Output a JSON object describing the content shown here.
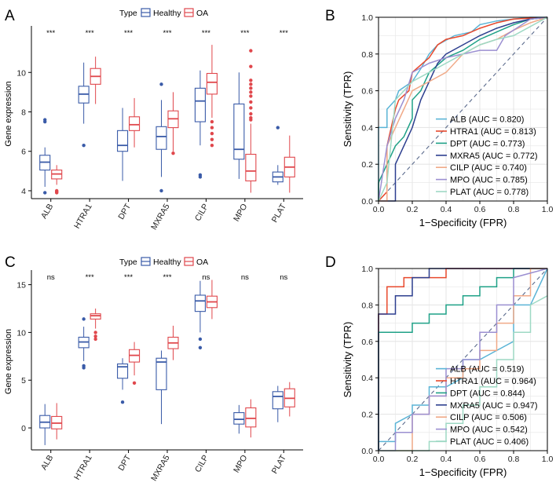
{
  "figure": {
    "title": ""
  },
  "chart_data": [
    {
      "panel": "A",
      "type": "box",
      "legend_title": "Type",
      "legend": [
        "Healthy",
        "OA"
      ],
      "ylabel": "Gene expression",
      "ylim": [
        3.6,
        12.2
      ],
      "yticks": [
        "4",
        "6",
        "8",
        "10"
      ],
      "categories": [
        "ALB",
        "HTRA1",
        "DPT",
        "MXRA5",
        "CILP",
        "MPO",
        "PLAT"
      ],
      "significance": [
        "***",
        "***",
        "***",
        "***",
        "***",
        "***",
        "***"
      ],
      "series": [
        {
          "name": "Healthy",
          "boxes": [
            {
              "min": 4.2,
              "q1": 5.05,
              "median": 5.45,
              "q3": 5.8,
              "max": 6.2,
              "outliers": [
                7.6,
                7.5,
                3.9
              ]
            },
            {
              "min": 7.4,
              "q1": 8.45,
              "median": 8.9,
              "q3": 9.3,
              "max": 10.5,
              "outliers": [
                6.3
              ]
            },
            {
              "min": 4.5,
              "q1": 6.0,
              "median": 6.3,
              "q3": 7.05,
              "max": 8.2,
              "outliers": []
            },
            {
              "min": 4.7,
              "q1": 6.1,
              "median": 6.75,
              "q3": 7.25,
              "max": 8.6,
              "outliers": [
                9.4,
                4.0
              ]
            },
            {
              "min": 6.3,
              "q1": 7.5,
              "median": 8.55,
              "q3": 9.2,
              "max": 10.1,
              "outliers": [
                4.8,
                4.7
              ]
            },
            {
              "min": 4.6,
              "q1": 5.6,
              "median": 6.1,
              "q3": 8.4,
              "max": 10.0,
              "outliers": []
            },
            {
              "min": 4.3,
              "q1": 4.45,
              "median": 4.7,
              "q3": 4.95,
              "max": 5.3,
              "outliers": [
                7.2
              ]
            }
          ]
        },
        {
          "name": "OA",
          "boxes": [
            {
              "min": 4.3,
              "q1": 4.6,
              "median": 4.85,
              "q3": 5.05,
              "max": 5.3,
              "outliers": [
                4.0,
                3.95,
                3.9
              ]
            },
            {
              "min": 8.4,
              "q1": 9.4,
              "median": 9.8,
              "q3": 10.2,
              "max": 10.8,
              "outliers": []
            },
            {
              "min": 6.2,
              "q1": 7.05,
              "median": 7.35,
              "q3": 7.75,
              "max": 8.7,
              "outliers": []
            },
            {
              "min": 6.0,
              "q1": 7.2,
              "median": 7.65,
              "q3": 8.05,
              "max": 9.0,
              "outliers": [
                5.9
              ]
            },
            {
              "min": 7.7,
              "q1": 8.9,
              "median": 9.5,
              "q3": 9.95,
              "max": 11.4,
              "outliers": [
                7.5,
                7.2,
                6.9,
                6.6,
                6.3
              ]
            },
            {
              "min": 3.9,
              "q1": 4.5,
              "median": 5.0,
              "q3": 5.85,
              "max": 7.4,
              "outliers": [
                11.1,
                10.3,
                9.6,
                9.4,
                9.2,
                9.0,
                8.8,
                8.5,
                8.2,
                7.9,
                7.7,
                7.6
              ]
            },
            {
              "min": 3.9,
              "q1": 4.7,
              "median": 5.2,
              "q3": 5.7,
              "max": 6.8,
              "outliers": []
            }
          ]
        }
      ]
    },
    {
      "panel": "B",
      "type": "roc",
      "xlabel": "1−Specificity (FPR)",
      "ylabel": "Sensitivity (TPR)",
      "xlim": [
        0,
        1
      ],
      "ylim": [
        0,
        1
      ],
      "xticks": [
        "0.0",
        "0.2",
        "0.4",
        "0.6",
        "0.8",
        "1.0"
      ],
      "yticks": [
        "0.0",
        "0.2",
        "0.4",
        "0.6",
        "0.8",
        "1.0"
      ],
      "series": [
        {
          "name": "ALB",
          "label": "ALB (AUC = 0.820)",
          "color": "#5AB4D6",
          "fpr": [
            0,
            0,
            0.05,
            0.05,
            0.1,
            0.12,
            0.2,
            0.25,
            0.3,
            0.35,
            0.45,
            0.55,
            0.6,
            0.7,
            0.8,
            0.9,
            1
          ],
          "tpr": [
            0,
            0.4,
            0.4,
            0.5,
            0.55,
            0.6,
            0.65,
            0.72,
            0.8,
            0.85,
            0.9,
            0.92,
            0.96,
            0.98,
            0.99,
            1,
            1
          ]
        },
        {
          "name": "HTRA1",
          "label": "HTRA1 (AUC = 0.813)",
          "color": "#E8492D",
          "fpr": [
            0,
            0.05,
            0.05,
            0.1,
            0.12,
            0.18,
            0.2,
            0.3,
            0.35,
            0.4,
            0.5,
            0.6,
            0.7,
            0.8,
            1
          ],
          "tpr": [
            0,
            0.05,
            0.3,
            0.5,
            0.55,
            0.6,
            0.7,
            0.78,
            0.85,
            0.88,
            0.9,
            0.94,
            0.97,
            0.99,
            1
          ]
        },
        {
          "name": "DPT",
          "label": "DPT (AUC = 0.773)",
          "color": "#1FA187",
          "fpr": [
            0,
            0,
            0.05,
            0.1,
            0.15,
            0.2,
            0.2,
            0.25,
            0.3,
            0.4,
            0.5,
            0.6,
            0.7,
            0.8,
            0.9,
            1
          ],
          "tpr": [
            0,
            0.1,
            0.2,
            0.3,
            0.35,
            0.45,
            0.55,
            0.6,
            0.7,
            0.78,
            0.82,
            0.88,
            0.92,
            0.96,
            0.99,
            1
          ]
        },
        {
          "name": "MXRA5",
          "label": "MXRA5 (AUC = 0.772)",
          "color": "#2D3F8F",
          "fpr": [
            0,
            0.1,
            0.1,
            0.15,
            0.2,
            0.25,
            0.3,
            0.35,
            0.4,
            0.5,
            0.6,
            0.7,
            0.8,
            0.9,
            1
          ],
          "tpr": [
            0,
            0,
            0.2,
            0.3,
            0.4,
            0.55,
            0.65,
            0.75,
            0.8,
            0.85,
            0.9,
            0.94,
            0.97,
            0.99,
            1
          ]
        },
        {
          "name": "CILP",
          "label": "CILP (AUC = 0.740)",
          "color": "#F0A987",
          "fpr": [
            0,
            0.05,
            0.05,
            0.1,
            0.15,
            0.2,
            0.3,
            0.4,
            0.5,
            0.6,
            0.7,
            0.8,
            0.9,
            1
          ],
          "tpr": [
            0,
            0,
            0.3,
            0.4,
            0.5,
            0.6,
            0.65,
            0.7,
            0.8,
            0.85,
            0.88,
            0.93,
            0.97,
            1
          ]
        },
        {
          "name": "MPO",
          "label": "MPO (AUC = 0.785)",
          "color": "#9B8FD1",
          "fpr": [
            0,
            0.05,
            0.1,
            0.15,
            0.2,
            0.3,
            0.4,
            0.5,
            0.6,
            0.7,
            0.75,
            0.8,
            0.85,
            0.9,
            1
          ],
          "tpr": [
            0,
            0.3,
            0.45,
            0.55,
            0.7,
            0.75,
            0.78,
            0.8,
            0.82,
            0.82,
            0.9,
            0.93,
            0.96,
            0.99,
            1
          ]
        },
        {
          "name": "PLAT",
          "label": "PLAT (AUC = 0.778)",
          "color": "#9ED9C4",
          "fpr": [
            0,
            0.05,
            0.1,
            0.15,
            0.2,
            0.3,
            0.4,
            0.5,
            0.6,
            0.7,
            0.8,
            0.9,
            1
          ],
          "tpr": [
            0,
            0.1,
            0.55,
            0.6,
            0.65,
            0.7,
            0.75,
            0.8,
            0.85,
            0.88,
            0.9,
            0.95,
            1
          ]
        }
      ]
    },
    {
      "panel": "C",
      "type": "box",
      "legend_title": "Type",
      "legend": [
        "Healthy",
        "OA"
      ],
      "ylabel": "Gene expression",
      "ylim": [
        -2.3,
        16.2
      ],
      "yticks": [
        "0",
        "5",
        "10",
        "15"
      ],
      "categories": [
        "ALB",
        "HTRA1",
        "DPT",
        "MXRA5",
        "CILP",
        "MPO",
        "PLAT"
      ],
      "significance": [
        "ns",
        "***",
        "***",
        "***",
        "ns",
        "ns",
        "ns"
      ],
      "series": [
        {
          "name": "Healthy",
          "boxes": [
            {
              "min": -1.8,
              "q1": 0.0,
              "median": 0.6,
              "q3": 1.3,
              "max": 2.5,
              "outliers": []
            },
            {
              "min": 7.0,
              "q1": 8.4,
              "median": 9.0,
              "q3": 9.5,
              "max": 10.6,
              "outliers": [
                11.4,
                6.5,
                6.3
              ]
            },
            {
              "min": 4.0,
              "q1": 5.2,
              "median": 6.4,
              "q3": 6.7,
              "max": 7.3,
              "outliers": [
                2.7
              ]
            },
            {
              "min": 0.4,
              "q1": 4.0,
              "median": 6.9,
              "q3": 7.3,
              "max": 8.1,
              "outliers": []
            },
            {
              "min": 10.0,
              "q1": 12.2,
              "median": 13.3,
              "q3": 13.9,
              "max": 15.4,
              "outliers": [
                9.3,
                8.4
              ]
            },
            {
              "min": -0.6,
              "q1": 0.4,
              "median": 0.9,
              "q3": 1.6,
              "max": 2.4,
              "outliers": []
            },
            {
              "min": 0.6,
              "q1": 2.0,
              "median": 3.3,
              "q3": 3.8,
              "max": 4.4,
              "outliers": []
            }
          ]
        },
        {
          "name": "OA",
          "boxes": [
            {
              "min": -1.2,
              "q1": -0.1,
              "median": 0.5,
              "q3": 1.2,
              "max": 2.6,
              "outliers": []
            },
            {
              "min": 10.4,
              "q1": 11.4,
              "median": 11.75,
              "q3": 11.95,
              "max": 12.5,
              "outliers": [
                10.0,
                9.6,
                9.3
              ]
            },
            {
              "min": 5.5,
              "q1": 6.9,
              "median": 7.6,
              "q3": 8.2,
              "max": 9.0,
              "outliers": [
                4.7
              ]
            },
            {
              "min": 7.1,
              "q1": 8.3,
              "median": 8.9,
              "q3": 9.5,
              "max": 10.7,
              "outliers": []
            },
            {
              "min": 11.4,
              "q1": 12.6,
              "median": 13.2,
              "q3": 13.8,
              "max": 15.5,
              "outliers": []
            },
            {
              "min": -1.0,
              "q1": 0.1,
              "median": 1.0,
              "q3": 2.1,
              "max": 3.0,
              "outliers": []
            },
            {
              "min": 1.2,
              "q1": 2.2,
              "median": 3.1,
              "q3": 4.1,
              "max": 4.8,
              "outliers": []
            }
          ]
        }
      ]
    },
    {
      "panel": "D",
      "type": "roc",
      "xlabel": "1−Specificity (FPR)",
      "ylabel": "Sensitivity (TPR)",
      "xlim": [
        0,
        1
      ],
      "ylim": [
        0,
        1
      ],
      "xticks": [
        "0.0",
        "0.2",
        "0.4",
        "0.6",
        "0.8",
        "1.0"
      ],
      "yticks": [
        "0.0",
        "0.2",
        "0.4",
        "0.6",
        "0.8",
        "1.0"
      ],
      "series": [
        {
          "name": "ALB",
          "label": "ALB (AUC = 0.519)",
          "color": "#5AB4D6",
          "fpr": [
            0,
            0,
            0.1,
            0.1,
            0.2,
            0.2,
            0.3,
            0.3,
            0.4,
            0.5,
            0.5,
            0.6,
            0.7,
            0.8,
            0.8,
            0.9,
            1
          ],
          "tpr": [
            0,
            0.05,
            0.05,
            0.15,
            0.2,
            0.25,
            0.25,
            0.35,
            0.35,
            0.4,
            0.5,
            0.5,
            0.55,
            0.6,
            0.8,
            0.8,
            1
          ]
        },
        {
          "name": "HTRA1",
          "label": "HTRA1 (AUC = 0.964)",
          "color": "#E8492D",
          "fpr": [
            0,
            0,
            0.05,
            0.05,
            0.15,
            0.15,
            0.4,
            0.4,
            1
          ],
          "tpr": [
            0,
            0.75,
            0.75,
            0.9,
            0.9,
            0.95,
            0.95,
            1,
            1
          ]
        },
        {
          "name": "DPT",
          "label": "DPT (AUC = 0.844)",
          "color": "#1FA187",
          "fpr": [
            0,
            0,
            0.2,
            0.2,
            0.3,
            0.3,
            0.4,
            0.4,
            0.5,
            0.5,
            0.6,
            0.6,
            0.7,
            0.7,
            0.8,
            0.8,
            1
          ],
          "tpr": [
            0,
            0.65,
            0.65,
            0.7,
            0.7,
            0.75,
            0.75,
            0.8,
            0.8,
            0.85,
            0.85,
            0.9,
            0.9,
            0.95,
            0.95,
            1,
            1
          ]
        },
        {
          "name": "MXRA5",
          "label": "MXRA5 (AUC = 0.947)",
          "color": "#2D3F8F",
          "fpr": [
            0,
            0,
            0.1,
            0.1,
            0.2,
            0.2,
            0.3,
            0.3,
            1
          ],
          "tpr": [
            0,
            0.75,
            0.75,
            0.85,
            0.85,
            0.95,
            0.95,
            1,
            1
          ]
        },
        {
          "name": "CILP",
          "label": "CILP (AUC = 0.506)",
          "color": "#F0A987",
          "fpr": [
            0,
            0.2,
            0.2,
            0.3,
            0.3,
            0.4,
            0.4,
            0.5,
            0.5,
            0.6,
            0.6,
            0.7,
            0.7,
            0.8,
            0.8,
            0.9,
            0.9,
            1
          ],
          "tpr": [
            0,
            0,
            0.2,
            0.2,
            0.3,
            0.3,
            0.4,
            0.4,
            0.45,
            0.45,
            0.55,
            0.55,
            0.7,
            0.7,
            0.85,
            0.85,
            1,
            1
          ]
        },
        {
          "name": "MPO",
          "label": "MPO (AUC = 0.542)",
          "color": "#9B8FD1",
          "fpr": [
            0,
            0.1,
            0.1,
            0.2,
            0.2,
            0.3,
            0.3,
            0.4,
            0.4,
            0.5,
            0.5,
            0.6,
            0.6,
            0.7,
            0.7,
            0.8,
            0.8,
            1
          ],
          "tpr": [
            0,
            0,
            0.1,
            0.1,
            0.2,
            0.2,
            0.3,
            0.3,
            0.45,
            0.45,
            0.5,
            0.5,
            0.65,
            0.65,
            0.8,
            0.8,
            0.95,
            1
          ]
        },
        {
          "name": "PLAT",
          "label": "PLAT (AUC = 0.406)",
          "color": "#9ED9C4",
          "fpr": [
            0,
            0.3,
            0.3,
            0.4,
            0.4,
            0.5,
            0.5,
            0.6,
            0.6,
            0.7,
            0.7,
            0.8,
            0.8,
            0.9,
            0.9,
            1
          ],
          "tpr": [
            0,
            0,
            0.05,
            0.05,
            0.15,
            0.15,
            0.25,
            0.25,
            0.35,
            0.35,
            0.5,
            0.5,
            0.65,
            0.65,
            0.8,
            0.85
          ]
        }
      ]
    }
  ],
  "colors": {
    "healthy": "#3A5BA8",
    "oa": "#E0474C",
    "grid": "#E6E6E6",
    "diagonal": "#5A6A8C"
  }
}
